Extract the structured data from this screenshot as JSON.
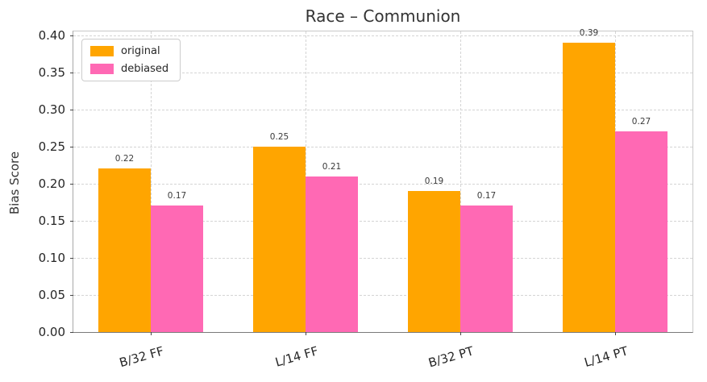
{
  "chart_data": {
    "type": "bar",
    "title": "Race – Communion",
    "xlabel": "",
    "ylabel": "Bias Score",
    "categories": [
      "B/32 FF",
      "L/14 FF",
      "B/32 PT",
      "L/14 PT"
    ],
    "series": [
      {
        "name": "original",
        "color": "#FFA500",
        "values": [
          0.22,
          0.25,
          0.19,
          0.39
        ]
      },
      {
        "name": "debiased",
        "color": "#FF69B4",
        "values": [
          0.17,
          0.21,
          0.17,
          0.27
        ]
      }
    ],
    "value_labels": [
      [
        "0.22",
        "0.25",
        "0.19",
        "0.39"
      ],
      [
        "0.17",
        "0.21",
        "0.17",
        "0.27"
      ]
    ],
    "ylim": [
      0.0,
      0.405
    ],
    "yticks": [
      "0.00",
      "0.05",
      "0.10",
      "0.15",
      "0.20",
      "0.25",
      "0.30",
      "0.35",
      "0.40"
    ],
    "grid": true,
    "grid_style": "dashed",
    "legend_position": "upper left",
    "legend": [
      {
        "label": "original",
        "color": "#FFA500"
      },
      {
        "label": "debiased",
        "color": "#FF69B4"
      }
    ]
  }
}
